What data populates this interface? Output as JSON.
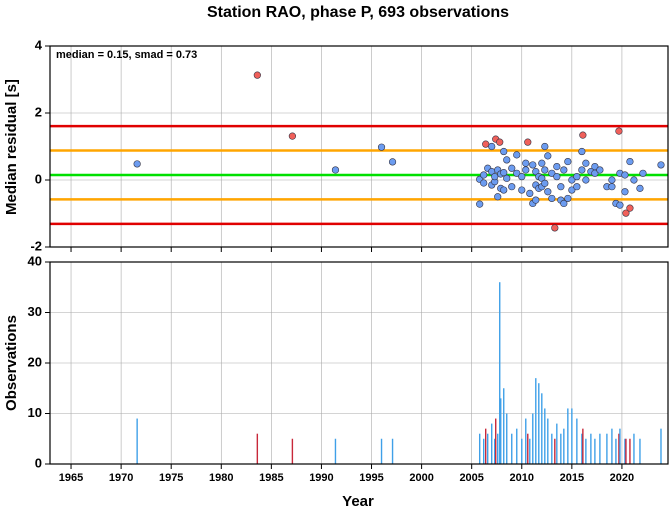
{
  "chart_data": [
    {
      "type": "scatter",
      "title": "Station RAO, phase P, 693 observations",
      "annotation": "median = 0.15, smad = 0.73",
      "ylabel": "Median residual [s]",
      "xlim": [
        1962.9,
        2024.6
      ],
      "ylim": [
        -2,
        4
      ],
      "xticks": [
        1965,
        1970,
        1975,
        1980,
        1985,
        1990,
        1995,
        2000,
        2005,
        2010,
        2015,
        2020
      ],
      "yticks": [
        -2,
        0,
        2,
        4
      ],
      "grid": true,
      "hlines": [
        {
          "value": 0.15,
          "color": "#00e000"
        },
        {
          "value": 0.88,
          "color": "#ffa500"
        },
        {
          "value": -0.58,
          "color": "#ffa500"
        },
        {
          "value": 1.61,
          "color": "#e00000"
        },
        {
          "value": -1.31,
          "color": "#e00000"
        }
      ],
      "x": [
        1971.6,
        1983.6,
        1987.1,
        1991.4,
        1996.0,
        1997.1,
        2005.8,
        2005.8,
        2006.2,
        2006.2,
        2006.4,
        2006.6,
        2007.0,
        2007.0,
        2007.0,
        2007.3,
        2007.3,
        2007.4,
        2007.6,
        2007.6,
        2007.8,
        2007.9,
        2007.9,
        2008.2,
        2008.2,
        2008.2,
        2008.5,
        2008.5,
        2009.0,
        2009.0,
        2009.5,
        2009.5,
        2010.0,
        2010.0,
        2010.4,
        2010.4,
        2010.6,
        2010.8,
        2011.1,
        2011.1,
        2011.4,
        2011.4,
        2011.4,
        2011.7,
        2011.7,
        2012.0,
        2012.0,
        2012.0,
        2012.3,
        2012.3,
        2012.3,
        2012.6,
        2012.6,
        2013.0,
        2013.0,
        2013.3,
        2013.5,
        2013.5,
        2013.9,
        2013.9,
        2014.2,
        2014.2,
        2014.6,
        2014.6,
        2015.0,
        2015.0,
        2015.5,
        2015.5,
        2016.0,
        2016.0,
        2016.1,
        2016.4,
        2016.4,
        2016.9,
        2017.3,
        2017.3,
        2017.8,
        2018.5,
        2019.0,
        2019.0,
        2019.4,
        2019.7,
        2019.8,
        2019.8,
        2020.3,
        2020.3,
        2020.4,
        2020.8,
        2020.8,
        2021.2,
        2021.8,
        2022.1,
        2023.9
      ],
      "values": [
        0.48,
        3.13,
        1.31,
        0.3,
        0.98,
        0.54,
        0.02,
        -0.72,
        0.15,
        -0.09,
        1.07,
        0.35,
        0.25,
        -0.15,
        1.0,
        -0.05,
        0.1,
        1.22,
        0.3,
        -0.5,
        1.13,
        0.18,
        -0.25,
        0.85,
        0.22,
        -0.3,
        0.6,
        0.05,
        0.35,
        -0.2,
        0.2,
        0.75,
        0.1,
        -0.3,
        0.5,
        0.3,
        1.13,
        -0.4,
        0.45,
        -0.7,
        0.25,
        -0.15,
        -0.6,
        0.1,
        -0.25,
        0.05,
        -0.2,
        0.5,
        1.0,
        0.3,
        -0.1,
        0.72,
        -0.35,
        0.2,
        -0.55,
        -1.43,
        0.1,
        0.4,
        -0.6,
        -0.2,
        -0.7,
        0.3,
        0.55,
        -0.55,
        0,
        -0.3,
        0.1,
        -0.2,
        0.85,
        0.3,
        1.34,
        0.5,
        0,
        0.25,
        0.4,
        0.2,
        0.3,
        -0.2,
        -0.2,
        0,
        -0.7,
        1.46,
        -0.75,
        0.2,
        -0.35,
        0.15,
        -0.99,
        -0.84,
        0.55,
        0,
        -0.25,
        0.2,
        0.45
      ],
      "colors": [
        "#6c9cf0",
        "#f0605a",
        "#f0605a",
        "#6c9cf0",
        "#6c9cf0",
        "#6c9cf0",
        "#6c9cf0",
        "#6c9cf0",
        "#6c9cf0",
        "#6c9cf0",
        "#f0605a",
        "#6c9cf0",
        "#6c9cf0",
        "#6c9cf0",
        "#6c9cf0",
        "#6c9cf0",
        "#6c9cf0",
        "#f0605a",
        "#6c9cf0",
        "#6c9cf0",
        "#f0605a",
        "#6c9cf0",
        "#6c9cf0",
        "#6c9cf0",
        "#6c9cf0",
        "#6c9cf0",
        "#6c9cf0",
        "#6c9cf0",
        "#6c9cf0",
        "#6c9cf0",
        "#6c9cf0",
        "#6c9cf0",
        "#6c9cf0",
        "#6c9cf0",
        "#6c9cf0",
        "#6c9cf0",
        "#f0605a",
        "#6c9cf0",
        "#6c9cf0",
        "#6c9cf0",
        "#6c9cf0",
        "#6c9cf0",
        "#6c9cf0",
        "#6c9cf0",
        "#6c9cf0",
        "#6c9cf0",
        "#6c9cf0",
        "#6c9cf0",
        "#6c9cf0",
        "#6c9cf0",
        "#6c9cf0",
        "#6c9cf0",
        "#6c9cf0",
        "#6c9cf0",
        "#6c9cf0",
        "#f0605a",
        "#6c9cf0",
        "#6c9cf0",
        "#6c9cf0",
        "#6c9cf0",
        "#6c9cf0",
        "#6c9cf0",
        "#6c9cf0",
        "#6c9cf0",
        "#6c9cf0",
        "#6c9cf0",
        "#6c9cf0",
        "#6c9cf0",
        "#6c9cf0",
        "#6c9cf0",
        "#f0605a",
        "#6c9cf0",
        "#6c9cf0",
        "#6c9cf0",
        "#6c9cf0",
        "#6c9cf0",
        "#6c9cf0",
        "#6c9cf0",
        "#6c9cf0",
        "#6c9cf0",
        "#6c9cf0",
        "#f0605a",
        "#6c9cf0",
        "#6c9cf0",
        "#6c9cf0",
        "#6c9cf0",
        "#f0605a",
        "#f0605a",
        "#6c9cf0",
        "#6c9cf0",
        "#6c9cf0",
        "#6c9cf0",
        "#6c9cf0"
      ]
    },
    {
      "type": "bar",
      "xlabel": "Year",
      "ylabel": "Observations",
      "xlim": [
        1962.9,
        2024.6
      ],
      "ylim": [
        0,
        40
      ],
      "xticks": [
        1965,
        1970,
        1975,
        1980,
        1985,
        1990,
        1995,
        2000,
        2005,
        2010,
        2015,
        2020
      ],
      "yticks": [
        0,
        10,
        20,
        30,
        40
      ],
      "grid": true,
      "x": [
        1971.6,
        1983.6,
        1987.1,
        1991.4,
        1996.0,
        1997.1,
        2005.8,
        2006.2,
        2006.4,
        2006.6,
        2007.0,
        2007.3,
        2007.4,
        2007.6,
        2007.8,
        2007.9,
        2008.2,
        2008.5,
        2009.0,
        2009.5,
        2010.0,
        2010.4,
        2010.6,
        2010.8,
        2011.1,
        2011.4,
        2011.7,
        2012.0,
        2012.3,
        2012.6,
        2013.0,
        2013.3,
        2013.5,
        2013.9,
        2014.2,
        2014.6,
        2015.0,
        2015.5,
        2016.0,
        2016.1,
        2016.4,
        2016.9,
        2017.3,
        2017.8,
        2018.5,
        2019.0,
        2019.4,
        2019.7,
        2019.8,
        2020.3,
        2020.4,
        2020.8,
        2021.2,
        2021.8,
        2023.9
      ],
      "values": [
        9,
        6,
        5,
        5,
        5,
        5,
        6,
        5,
        7,
        6,
        8,
        5,
        9,
        6,
        36,
        13,
        15,
        10,
        6,
        7,
        5,
        9,
        6,
        5,
        10,
        17,
        16,
        14,
        11,
        9,
        6,
        5,
        8,
        6,
        7,
        11,
        11,
        9,
        6,
        7,
        5,
        6,
        5,
        6,
        6,
        7,
        5,
        6,
        7,
        5,
        5,
        5,
        6,
        5,
        7
      ],
      "colors": [
        "#3fa0e8",
        "#c8283a",
        "#c8283a",
        "#3fa0e8",
        "#3fa0e8",
        "#3fa0e8",
        "#3fa0e8",
        "#3fa0e8",
        "#c8283a",
        "#3fa0e8",
        "#3fa0e8",
        "#3fa0e8",
        "#c8283a",
        "#3fa0e8",
        "#3fa0e8",
        "#3fa0e8",
        "#3fa0e8",
        "#3fa0e8",
        "#3fa0e8",
        "#3fa0e8",
        "#3fa0e8",
        "#3fa0e8",
        "#c8283a",
        "#3fa0e8",
        "#3fa0e8",
        "#3fa0e8",
        "#3fa0e8",
        "#3fa0e8",
        "#3fa0e8",
        "#3fa0e8",
        "#3fa0e8",
        "#c8283a",
        "#3fa0e8",
        "#3fa0e8",
        "#3fa0e8",
        "#3fa0e8",
        "#3fa0e8",
        "#3fa0e8",
        "#3fa0e8",
        "#c8283a",
        "#3fa0e8",
        "#3fa0e8",
        "#3fa0e8",
        "#3fa0e8",
        "#3fa0e8",
        "#3fa0e8",
        "#3fa0e8",
        "#c8283a",
        "#3fa0e8",
        "#3fa0e8",
        "#c8283a",
        "#c8283a",
        "#3fa0e8",
        "#3fa0e8",
        "#3fa0e8"
      ]
    }
  ]
}
